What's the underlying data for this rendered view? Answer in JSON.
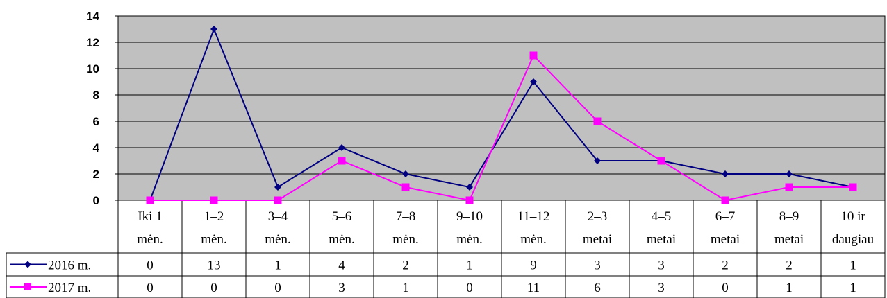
{
  "chart_data": {
    "type": "line",
    "categories": [
      [
        "Iki 1",
        "mėn."
      ],
      [
        "1–2",
        "mėn."
      ],
      [
        "3–4",
        "mėn."
      ],
      [
        "5–6",
        "mėn."
      ],
      [
        "7–8",
        "mėn."
      ],
      [
        "9–10",
        "mėn."
      ],
      [
        "11–12",
        "mėn."
      ],
      [
        "2–3",
        "metai"
      ],
      [
        "4–5",
        "metai"
      ],
      [
        "6–7",
        "metai"
      ],
      [
        "8–9",
        "metai"
      ],
      [
        "10 ir",
        "daugiau"
      ]
    ],
    "series": [
      {
        "name": "2016 m.",
        "color": "#000080",
        "marker": "diamond",
        "values": [
          0,
          13,
          1,
          4,
          2,
          1,
          9,
          3,
          3,
          2,
          2,
          1
        ]
      },
      {
        "name": "2017 m.",
        "color": "#ff00ff",
        "marker": "square",
        "values": [
          0,
          0,
          0,
          3,
          1,
          0,
          11,
          6,
          3,
          0,
          1,
          1
        ]
      }
    ],
    "ylim": [
      0,
      14
    ],
    "yticks": [
      0,
      2,
      4,
      6,
      8,
      10,
      12,
      14
    ],
    "grid": true,
    "plot_background": "#c0c0c0",
    "data_table": true
  }
}
